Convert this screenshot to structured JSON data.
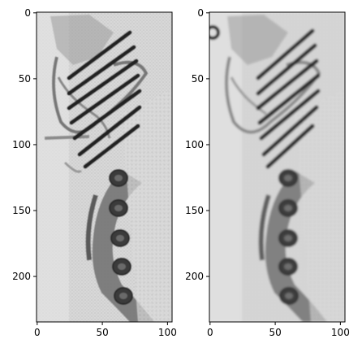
{
  "figure": {
    "panels": [
      {
        "name": "left",
        "image_width": 104,
        "image_height": 235,
        "x_ticks": [
          "0",
          "50",
          "100"
        ],
        "y_ticks": [
          "0",
          "50",
          "100",
          "150",
          "200"
        ]
      },
      {
        "name": "right",
        "image_width": 104,
        "image_height": 235,
        "x_ticks": [
          "0",
          "50",
          "100"
        ],
        "y_ticks": [
          "0",
          "50",
          "100",
          "150",
          "200"
        ]
      }
    ]
  },
  "colors": {
    "background": "#ffffff",
    "axis": "#000000",
    "image_base": "#d9d9d9",
    "dark_marker": "#2b2b2b",
    "mid_gray": "#7a7a7a"
  }
}
